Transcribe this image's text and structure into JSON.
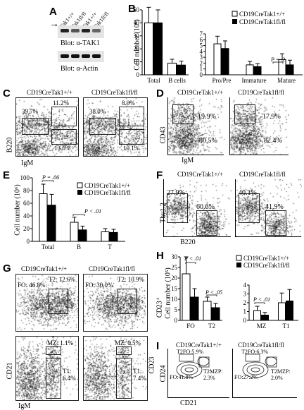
{
  "panels": {
    "A": {
      "label": "A",
      "lanes": [
        "Tak1+/+",
        "Tak1fl/fl",
        "Tak1+/+",
        "Tak1fl/fl"
      ],
      "blot1": "Blot: α-TAK1",
      "blot2": "Blot: α-Actin",
      "arrow": "→"
    },
    "B": {
      "label": "B",
      "ylabel": "Cell number (10⁶)",
      "legend": [
        "CD19CreTak1+/+",
        "CD19CreTak1fl/fl"
      ],
      "pvalue": "P = .2"
    },
    "C": {
      "label": "C",
      "titles": [
        "CD19CreTak1+/+",
        "CD19CreTak1fl/fl"
      ],
      "xlabel": "IgM",
      "ylabel": "B220",
      "left": {
        "tl": "39.7%",
        "tr": "11.2%",
        "br": "13.6%"
      },
      "right": {
        "tl": "38.0%",
        "tr": "8.0%",
        "br": "10.1%"
      }
    },
    "D": {
      "label": "D",
      "titles": [
        "CD19CreTak1+/+",
        "CD19CreTak1fl/fl"
      ],
      "xlabel": "IgM",
      "ylabel": "CD43",
      "left": {
        "top": "19.9%",
        "bot": "80.5%"
      },
      "right": {
        "top": "17.9%",
        "bot": "82.4%"
      }
    },
    "E": {
      "label": "E",
      "ylabel": "Cell number (10⁶)",
      "legend": [
        "CD19CreTak1+/+",
        "CD19CreTak1fl/fl"
      ],
      "p1": "P = .06",
      "p2": "P < .01"
    },
    "F": {
      "label": "F",
      "titles": [
        "CD19CreTak1+/+",
        "CD19CreTak1fl/fl"
      ],
      "xlabel": "B220",
      "ylabel": "Thy1.2",
      "left": {
        "a": "27.9%",
        "b": "60.6%"
      },
      "right": {
        "a": "40.1%",
        "b": "41.9%"
      }
    },
    "G": {
      "label": "G",
      "titles": [
        "CD19CreTak1+/+",
        "CD19CreTak1fl/fl"
      ],
      "xlabel": "IgM",
      "ylabel": "CD21",
      "ylabel_right": "CD23",
      "top_left": {
        "fo": "FO: 46.8%",
        "t2": "T2: 12.6%"
      },
      "top_right": {
        "fo": "FO: 30.0%",
        "t2": "T2: 10.9%"
      },
      "bot_left": {
        "mz": "MZ: 1.1%",
        "t1": "T1:\n6.4%"
      },
      "bot_right": {
        "mz": "MZ: 0.5%",
        "t1": "T1:\n7.4%"
      }
    },
    "H": {
      "label": "H",
      "ylabel": "Cell number (10⁵)",
      "ylabel2": "CD23⁺",
      "legend": [
        "CD19CreTak1+/+",
        "CD19CreTak1fl/fl"
      ],
      "p1": "P < .01",
      "p2": "P < .05",
      "p3": "P < .01"
    },
    "I": {
      "label": "I",
      "titles": [
        "CD19CreTak1+/+",
        "CD19CreTak1fl/fl"
      ],
      "xlabel": "CD21",
      "ylabel": "CD24",
      "left": {
        "t2fo": "T2FO:5.9%",
        "fo": "FO:41.8%",
        "mzp": "T2MZP:\n2.3%"
      },
      "right": {
        "t2fo": "T2FO:6.3%",
        "fo": "FO:27.2%",
        "mzp": "T2MZP:\n2.0%"
      }
    }
  },
  "chart_data": [
    {
      "type": "bar",
      "id": "B-left",
      "categories": [
        "Total",
        "B cells"
      ],
      "series": [
        {
          "name": "CD19CreTak1+/+",
          "values": [
            40,
            9
          ]
        },
        {
          "name": "CD19CreTak1fl/fl",
          "values": [
            40,
            7.5
          ]
        }
      ],
      "errors": [
        [
          12,
          3
        ],
        [
          10,
          3
        ]
      ],
      "ylim": [
        0,
        50
      ],
      "yticks": [
        0,
        10,
        20,
        30,
        40,
        50
      ]
    },
    {
      "type": "bar",
      "id": "B-right",
      "categories": [
        "Pro/Pre",
        "Immature",
        "Mature"
      ],
      "series": [
        {
          "name": "CD19CreTak1+/+",
          "values": [
            5.3,
            1.7,
            2.6
          ]
        },
        {
          "name": "CD19CreTak1fl/fl",
          "values": [
            4.5,
            1.4,
            1.7
          ]
        }
      ],
      "errors": [
        [
          1.3,
          0.6,
          1.0
        ],
        [
          1.3,
          0.5,
          0.8
        ]
      ],
      "ylim": [
        0,
        7
      ],
      "yticks": [
        0,
        1,
        2,
        3,
        4,
        5,
        6,
        7
      ]
    },
    {
      "type": "bar",
      "id": "E",
      "categories": [
        "Total",
        "B",
        "T"
      ],
      "series": [
        {
          "name": "CD19CreTak1+/+",
          "values": [
            75,
            30,
            15
          ]
        },
        {
          "name": "CD19CreTak1fl/fl",
          "values": [
            57,
            18,
            14
          ]
        }
      ],
      "errors": [
        [
          15,
          8,
          5
        ],
        [
          17,
          6,
          5
        ]
      ],
      "ylim": [
        0,
        100
      ],
      "yticks": [
        0,
        20,
        40,
        60,
        80,
        100
      ]
    },
    {
      "type": "bar",
      "id": "H-left",
      "categories": [
        "FO",
        "T2"
      ],
      "series": [
        {
          "name": "CD19CreTak1+/+",
          "values": [
            22,
            9
          ]
        },
        {
          "name": "CD19CreTak1fl/fl",
          "values": [
            11,
            6
          ]
        }
      ],
      "errors": [
        [
          8,
          2
        ],
        [
          4,
          2
        ]
      ],
      "ylim": [
        0,
        30
      ],
      "yticks": [
        0,
        5,
        10,
        15,
        20,
        25,
        30
      ]
    },
    {
      "type": "bar",
      "id": "H-right",
      "categories": [
        "MZ",
        "T1"
      ],
      "series": [
        {
          "name": "CD19CreTak1+/+",
          "values": [
            1.1,
            2
          ]
        },
        {
          "name": "CD19CreTak1fl/fl",
          "values": [
            0.6,
            2.2
          ]
        }
      ],
      "errors": [
        [
          0.5,
          1.1
        ],
        [
          0.3,
          1.3
        ]
      ],
      "ylim": [
        0,
        4
      ],
      "yticks": [
        0,
        1,
        2,
        3,
        4
      ]
    }
  ]
}
